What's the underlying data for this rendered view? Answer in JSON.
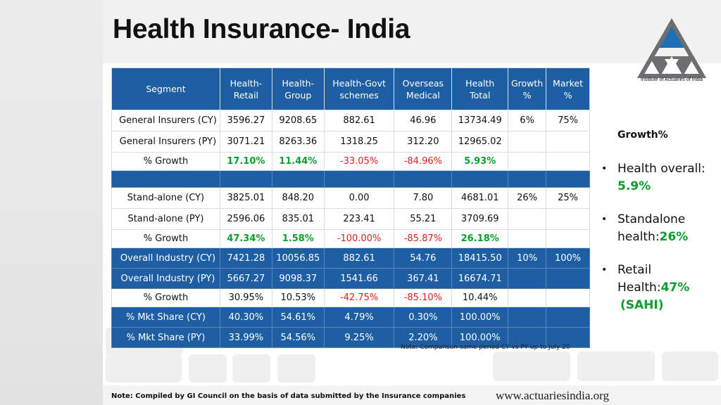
{
  "title": "Health Insurance- India",
  "logo": {
    "text": "Institute of Actuaries of India",
    "icon": "actuaries-triangle-logo"
  },
  "table": {
    "headers": [
      [
        "Segment"
      ],
      [
        "Health-",
        "Retail"
      ],
      [
        "Health-",
        "Group"
      ],
      [
        "Health-Govt",
        "schemes"
      ],
      [
        "Overseas",
        "Medical"
      ],
      [
        "Health",
        "Total"
      ],
      [
        "Growth",
        "%"
      ],
      [
        "Market",
        "%"
      ]
    ],
    "rows": [
      {
        "style": "white",
        "cells": [
          "General Insurers (CY)",
          "3596.27",
          "9208.65",
          "882.61",
          "46.96",
          "13734.49",
          "6%",
          "75%"
        ]
      },
      {
        "style": "white",
        "cells": [
          "General Insurers (PY)",
          "3071.21",
          "8263.36",
          "1318.25",
          "312.20",
          "12965.02",
          "",
          ""
        ]
      },
      {
        "style": "white-short",
        "cells": [
          "% Growth",
          "17.10%",
          "11.44%",
          "-33.05%",
          "-84.96%",
          "5.93%",
          "",
          ""
        ],
        "tones": [
          "",
          "green",
          "green",
          "red",
          "red",
          "green",
          "",
          ""
        ]
      },
      {
        "style": "blue-empty",
        "cells": [
          "",
          "",
          "",
          "",
          "",
          "",
          "",
          ""
        ]
      },
      {
        "style": "white",
        "cells": [
          "Stand-alone (CY)",
          "3825.01",
          "848.20",
          "0.00",
          "7.80",
          "4681.01",
          "26%",
          "25%"
        ]
      },
      {
        "style": "white",
        "cells": [
          "Stand-alone (PY)",
          "2596.06",
          "835.01",
          "223.41",
          "55.21",
          "3709.69",
          "",
          ""
        ]
      },
      {
        "style": "white-short",
        "cells": [
          "% Growth",
          "47.34%",
          "1.58%",
          "-100.00%",
          "-85.87%",
          "26.18%",
          "",
          ""
        ],
        "tones": [
          "",
          "green",
          "green",
          "red",
          "red",
          "green",
          "",
          ""
        ]
      },
      {
        "style": "blue",
        "cells": [
          "Overall Industry (CY)",
          "7421.28",
          "10056.85",
          "882.61",
          "54.76",
          "18415.50",
          "10%",
          "100%"
        ]
      },
      {
        "style": "blue",
        "cells": [
          "Overall Industry  (PY)",
          "5667.27",
          "9098.37",
          "1541.66",
          "367.41",
          "16674.71",
          "",
          ""
        ]
      },
      {
        "style": "white-short",
        "cells": [
          "% Growth",
          "30.95%",
          "10.53%",
          "-42.75%",
          "-85.10%",
          "10.44%",
          "",
          ""
        ],
        "tones": [
          "",
          "",
          "",
          "red",
          "red",
          "",
          "",
          ""
        ]
      },
      {
        "style": "blue",
        "cells": [
          "% Mkt Share (CY)",
          "40.30%",
          "54.61%",
          "4.79%",
          "0.30%",
          "100.00%",
          "",
          ""
        ]
      },
      {
        "style": "blue",
        "cells": [
          "% Mkt Share (PY)",
          "33.99%",
          "54.56%",
          "9.25%",
          "2.20%",
          "100.00%",
          "",
          ""
        ]
      }
    ],
    "note": "Note:  Comparison same period CY vs PY up to July 20"
  },
  "growth_panel": {
    "heading": "Growth%",
    "bullets": [
      {
        "label": "Health overall:",
        "value": "5.9%",
        "suffix": ""
      },
      {
        "label": "Standalone health:",
        "value": "26%",
        "suffix": ""
      },
      {
        "label": "Retail Health:",
        "value": "47%",
        "suffix": "(SAHI)"
      }
    ]
  },
  "footer": {
    "note": "Note:  Compiled by GI Council on the basis of data submitted by the Insurance companies",
    "website": "www.actuariesindia.org"
  },
  "colors": {
    "header_blue": "#1e5fa4",
    "positive_green": "#0a9e2c",
    "negative_red": "#e0201e"
  }
}
